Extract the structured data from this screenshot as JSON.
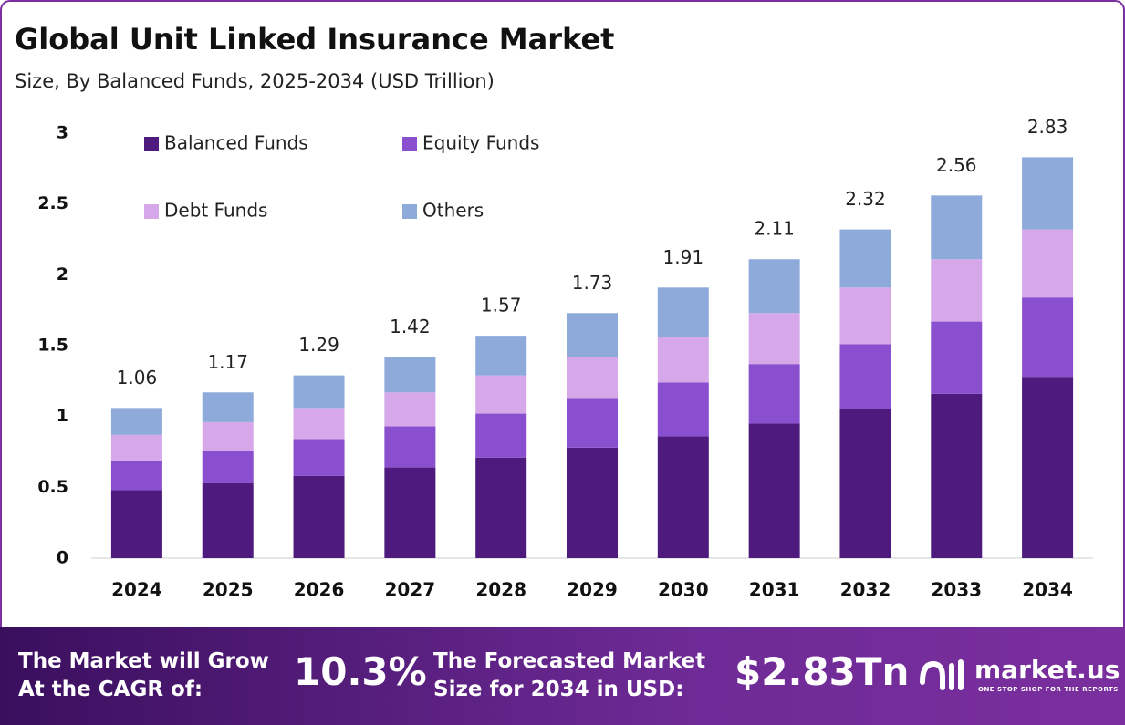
{
  "chart_data": {
    "type": "stacked_bar",
    "title": "Global Unit Linked Insurance Market",
    "subtitle": "Size, By Balanced Funds, 2025-2034 (USD Trillion)",
    "categories": [
      "2024",
      "2025",
      "2026",
      "2027",
      "2028",
      "2029",
      "2030",
      "2031",
      "2032",
      "2033",
      "2034"
    ],
    "series": [
      {
        "name": "Balanced Funds",
        "color": "#4e1a7e",
        "values": [
          0.48,
          0.53,
          0.58,
          0.64,
          0.71,
          0.78,
          0.86,
          0.95,
          1.05,
          1.16,
          1.28
        ]
      },
      {
        "name": "Equity Funds",
        "color": "#8a4fcf",
        "values": [
          0.21,
          0.23,
          0.26,
          0.29,
          0.31,
          0.35,
          0.38,
          0.42,
          0.46,
          0.51,
          0.56
        ]
      },
      {
        "name": "Debt Funds",
        "color": "#d6a8ea",
        "values": [
          0.18,
          0.2,
          0.22,
          0.24,
          0.27,
          0.29,
          0.32,
          0.36,
          0.4,
          0.44,
          0.48
        ]
      },
      {
        "name": "Others",
        "color": "#8eaadb",
        "values": [
          0.19,
          0.21,
          0.23,
          0.25,
          0.28,
          0.31,
          0.35,
          0.38,
          0.41,
          0.45,
          0.51
        ]
      }
    ],
    "totals": [
      1.06,
      1.17,
      1.29,
      1.42,
      1.57,
      1.73,
      1.91,
      2.11,
      2.32,
      2.56,
      2.83
    ],
    "ylim": [
      0,
      3
    ],
    "yticks": [
      0,
      0.5,
      1,
      1.5,
      2,
      2.5,
      3
    ],
    "grid": false,
    "legend": "top-left"
  },
  "footer": {
    "cagr_label": [
      "The Market will Grow",
      "At the CAGR of:"
    ],
    "cagr": "10.3%",
    "size_label": [
      "The Forecasted Market",
      "Size for 2034 in USD:"
    ],
    "size": "$2.83Tn",
    "brand": "market.us",
    "tagline": "ONE STOP SHOP FOR THE REPORTS"
  }
}
